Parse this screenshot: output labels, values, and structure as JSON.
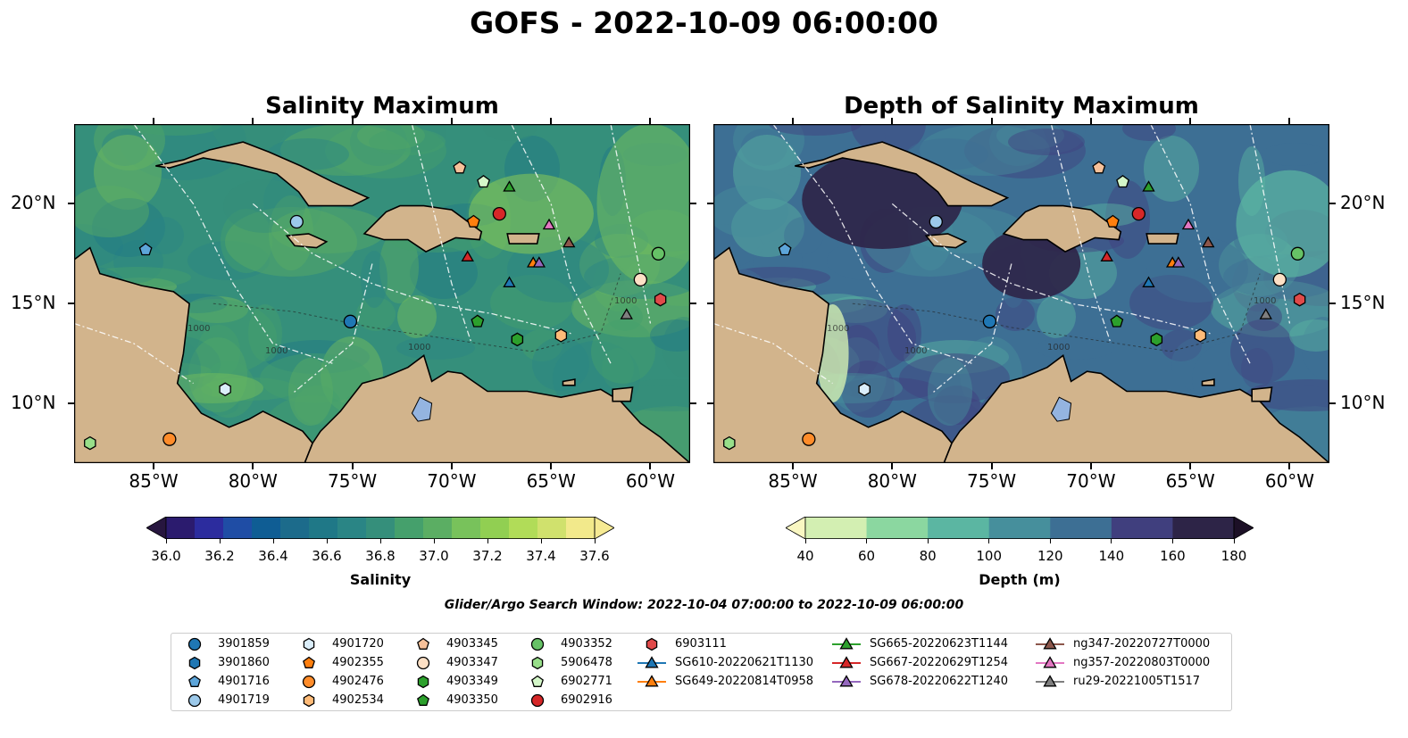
{
  "suptitle": "GOFS - 2022-10-09 06:00:00",
  "panels": [
    {
      "title": "Salinity Maximum",
      "variable": "salinity"
    },
    {
      "title": "Depth of Salinity Maximum",
      "variable": "depth"
    }
  ],
  "map": {
    "extent": {
      "lon": [
        -89,
        -58
      ],
      "lat": [
        7,
        24
      ]
    },
    "lon_ticks": [
      "85°W",
      "80°W",
      "75°W",
      "70°W",
      "65°W",
      "60°W"
    ],
    "lat_ticks": [
      "20°N",
      "15°N",
      "10°N"
    ],
    "contour_labels": [
      "1000",
      "1000",
      "1000",
      "1000"
    ],
    "land_color": "#d2b48c",
    "lake_color": "#94b4e0"
  },
  "colorbars": [
    {
      "label": "Salinity",
      "ticks": [
        "36.0",
        "36.2",
        "36.4",
        "36.6",
        "36.8",
        "37.0",
        "37.2",
        "37.4",
        "37.6"
      ],
      "under": "#27163f",
      "over": "#f6ea93",
      "colors": [
        "#2b1b6e",
        "#2c2c9e",
        "#1f4da5",
        "#0f5d94",
        "#1c6b8b",
        "#1f7887",
        "#2a8585",
        "#358f7b",
        "#45a06c",
        "#5bae63",
        "#78c25b",
        "#91cf52",
        "#b1dc58",
        "#d0e16d",
        "#f2e98b"
      ]
    },
    {
      "label": "Depth (m)",
      "ticks": [
        "40",
        "60",
        "80",
        "100",
        "120",
        "140",
        "160",
        "180"
      ],
      "under": "#f9f7c2",
      "over": "#1c1026",
      "colors": [
        "#d3efb2",
        "#8bd7a0",
        "#5bb6a2",
        "#468f9c",
        "#3d6f94",
        "#403f7e",
        "#2d2447"
      ]
    }
  ],
  "search_window": "Glider/Argo Search Window: 2022-10-04 07:00:00 to 2022-10-09 06:00:00",
  "legend": [
    {
      "label": "3901859",
      "shape": "circle",
      "color": "#1f77b4"
    },
    {
      "label": "3901860",
      "shape": "hexagon",
      "color": "#1f77b4"
    },
    {
      "label": "4901716",
      "shape": "pentagon",
      "color": "#5da5d9"
    },
    {
      "label": "4901719",
      "shape": "circle",
      "color": "#9cc9ea"
    },
    {
      "label": "4901720",
      "shape": "hexagon",
      "color": "#dbeefa"
    },
    {
      "label": "4902355",
      "shape": "pentagon",
      "color": "#ff7f0e"
    },
    {
      "label": "4902476",
      "shape": "circle",
      "color": "#ff8c2a"
    },
    {
      "label": "4902534",
      "shape": "hexagon",
      "color": "#ffbb78"
    },
    {
      "label": "4903345",
      "shape": "pentagon",
      "color": "#f7c19a"
    },
    {
      "label": "4903347",
      "shape": "circle",
      "color": "#fde0c5"
    },
    {
      "label": "4903349",
      "shape": "hexagon",
      "color": "#2ca02c"
    },
    {
      "label": "4903350",
      "shape": "pentagon",
      "color": "#2ca02c"
    },
    {
      "label": "4903352",
      "shape": "circle",
      "color": "#66c266"
    },
    {
      "label": "5906478",
      "shape": "hexagon",
      "color": "#98df8a"
    },
    {
      "label": "6902771",
      "shape": "pentagon",
      "color": "#d4f7c9"
    },
    {
      "label": "6902916",
      "shape": "circle",
      "color": "#d62728"
    },
    {
      "label": "6903111",
      "shape": "hexagon",
      "color": "#e04a4a"
    },
    {
      "label": "SG610-20220621T1130",
      "shape": "triangle-line",
      "color": "#1f77b4"
    },
    {
      "label": "SG649-20220814T0958",
      "shape": "triangle-line",
      "color": "#ff7f0e"
    },
    {
      "label": "SG665-20220623T1144",
      "shape": "triangle-line",
      "color": "#2ca02c"
    },
    {
      "label": "SG667-20220629T1254",
      "shape": "triangle-line",
      "color": "#d62728"
    },
    {
      "label": "SG678-20220622T1240",
      "shape": "triangle-line",
      "color": "#9467bd"
    },
    {
      "label": "ng347-20220727T0000",
      "shape": "triangle-line",
      "color": "#8c564b"
    },
    {
      "label": "ng357-20220803T0000",
      "shape": "triangle-line",
      "color": "#e377c2"
    },
    {
      "label": "ru29-20221005T1517",
      "shape": "triangle-line",
      "color": "#7f7f7f"
    }
  ],
  "platforms": [
    {
      "id": "3901859",
      "lon": -75.1,
      "lat": 14.1
    },
    {
      "id": "3901860",
      "lon": -66.7,
      "lat": 13.2
    },
    {
      "id": "4901716",
      "lon": -85.4,
      "lat": 17.7
    },
    {
      "id": "4901719",
      "lon": -77.8,
      "lat": 19.1
    },
    {
      "id": "4901720",
      "lon": -81.4,
      "lat": 10.7
    },
    {
      "id": "4902355",
      "lon": -68.9,
      "lat": 19.1
    },
    {
      "id": "4902476",
      "lon": -84.2,
      "lat": 8.2
    },
    {
      "id": "4902534",
      "lon": -64.5,
      "lat": 13.4
    },
    {
      "id": "4903345",
      "lon": -69.6,
      "lat": 21.8
    },
    {
      "id": "4903347",
      "lon": -60.5,
      "lat": 16.2
    },
    {
      "id": "4903349",
      "lon": -66.7,
      "lat": 13.2
    },
    {
      "id": "4903350",
      "lon": -68.7,
      "lat": 14.1
    },
    {
      "id": "4903352",
      "lon": -59.6,
      "lat": 17.5
    },
    {
      "id": "5906478",
      "lon": -88.2,
      "lat": 8.0
    },
    {
      "id": "6902771",
      "lon": -68.4,
      "lat": 21.1
    },
    {
      "id": "6902916",
      "lon": -67.6,
      "lat": 19.5
    },
    {
      "id": "6903111",
      "lon": -59.5,
      "lat": 15.2
    },
    {
      "id": "SG610-20220621T1130",
      "lon": -67.1,
      "lat": 16.0
    },
    {
      "id": "SG649-20220814T0958",
      "lon": -65.9,
      "lat": 17.0
    },
    {
      "id": "SG665-20220623T1144",
      "lon": -67.1,
      "lat": 20.8
    },
    {
      "id": "SG667-20220629T1254",
      "lon": -69.2,
      "lat": 17.3
    },
    {
      "id": "SG678-20220622T1240",
      "lon": -65.6,
      "lat": 17.0
    },
    {
      "id": "ng347-20220727T0000",
      "lon": -64.1,
      "lat": 18.0
    },
    {
      "id": "ng357-20220803T0000",
      "lon": -65.1,
      "lat": 18.9
    },
    {
      "id": "ru29-20221005T1517",
      "lon": -61.2,
      "lat": 14.4
    }
  ]
}
